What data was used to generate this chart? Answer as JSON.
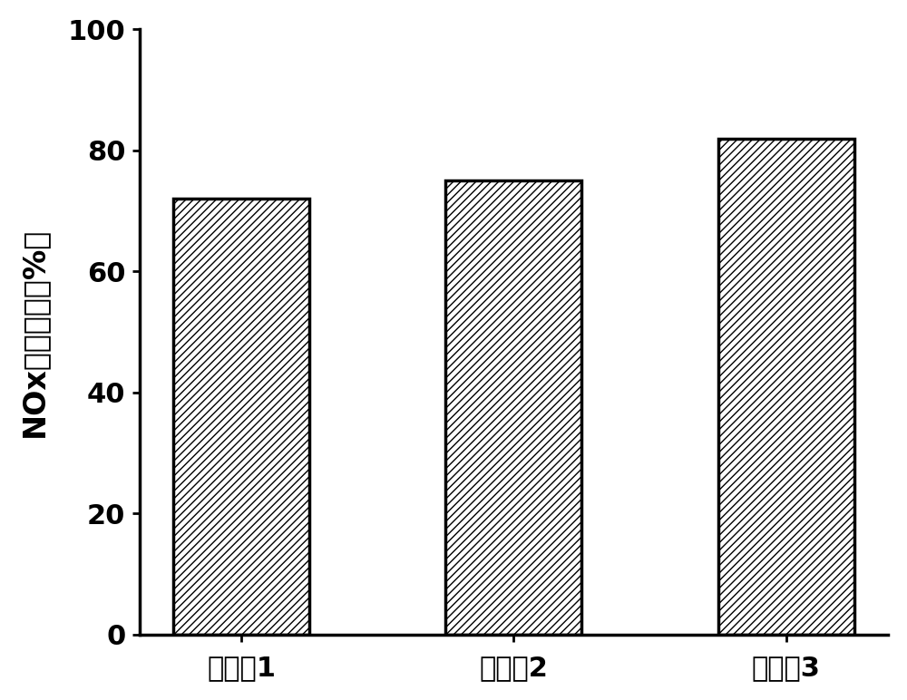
{
  "categories": [
    "实施例1",
    "实施例2",
    "实施例3"
  ],
  "values": [
    72,
    75,
    82
  ],
  "bar_color": "#ffffff",
  "bar_edgecolor": "#000000",
  "hatch_pattern": "////",
  "ylabel": "NOx转化效率（%）",
  "ylim": [
    0,
    100
  ],
  "yticks": [
    0,
    20,
    40,
    60,
    80,
    100
  ],
  "bar_width": 0.5,
  "tick_fontsize": 22,
  "label_fontsize": 24,
  "xlabel_fontsize": 22,
  "background_color": "#ffffff",
  "linewidth": 2.5
}
